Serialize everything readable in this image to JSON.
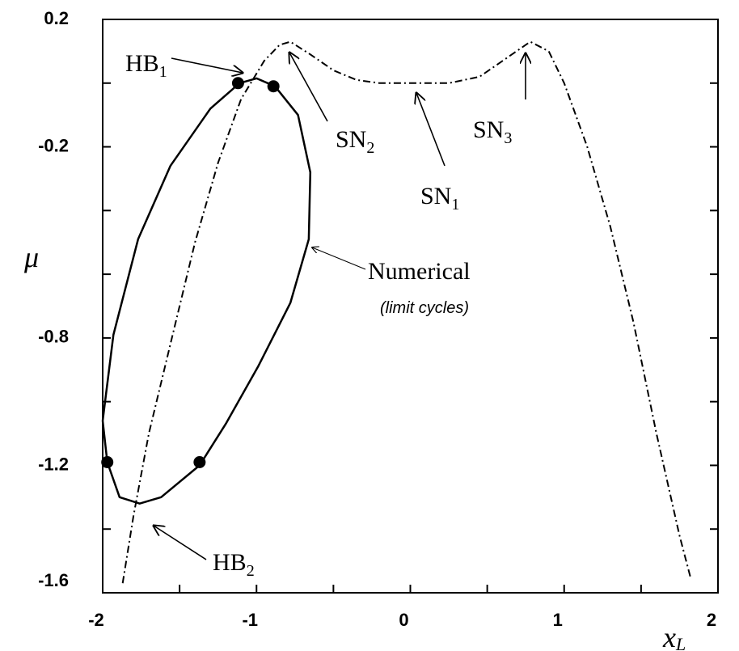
{
  "chart_data": {
    "type": "line",
    "xlabel": "x",
    "xlabel_sub": "L",
    "ylabel": "μ",
    "xlim": [
      -2,
      2
    ],
    "ylim": [
      -1.6,
      0.2
    ],
    "xticks": [
      -2,
      -1,
      0,
      1,
      2
    ],
    "yticks": [
      0.2,
      -0.2,
      -0.8,
      -1.2,
      -1.6
    ],
    "minor_xticks": [
      -1.5,
      -0.5,
      0.5,
      1.5
    ],
    "minor_yticks": [
      0,
      -0.4,
      -0.6,
      -1,
      -1.4
    ],
    "series": [
      {
        "style": "dashdot",
        "color": "#000000",
        "x": [
          -1.87,
          -1.8,
          -1.7,
          -1.55,
          -1.4,
          -1.25,
          -1.1,
          -0.95,
          -0.85,
          -0.78,
          -0.65,
          -0.5,
          -0.35,
          -0.2,
          0,
          0.25,
          0.45,
          0.6,
          0.72,
          0.78,
          0.9,
          1.0,
          1.15,
          1.3,
          1.45,
          1.6,
          1.75,
          1.82
        ],
        "values": [
          -1.57,
          -1.36,
          -1.1,
          -0.8,
          -0.5,
          -0.25,
          -0.05,
          0.07,
          0.12,
          0.13,
          0.09,
          0.04,
          0.01,
          0,
          0,
          0,
          0.02,
          0.07,
          0.11,
          0.13,
          0.1,
          0,
          -0.2,
          -0.45,
          -0.75,
          -1.1,
          -1.42,
          -1.55
        ]
      },
      {
        "style": "solid",
        "color": "#000000",
        "x": [
          -2,
          -1.93,
          -1.77,
          -1.56,
          -1.3,
          -1.11,
          -1.0,
          -0.88,
          -0.73,
          -0.65,
          -0.66,
          -0.78,
          -0.99,
          -1.2,
          -1.37,
          -1.62,
          -1.76,
          -1.89,
          -1.97,
          -2
        ],
        "values": [
          -1.06,
          -0.79,
          -0.49,
          -0.26,
          -0.08,
          0,
          0.015,
          -0.01,
          -0.1,
          -0.28,
          -0.49,
          -0.69,
          -0.89,
          -1.07,
          -1.2,
          -1.3,
          -1.32,
          -1.3,
          -1.19,
          -1.06
        ]
      },
      {
        "style": "dots",
        "color": "#000000",
        "x": [
          -1.12,
          -0.89,
          -1.97,
          -1.37
        ],
        "values": [
          0,
          -0.01,
          -1.19,
          -1.19
        ]
      }
    ],
    "annotations": [
      {
        "text": "HB",
        "sub": "1"
      },
      {
        "text": "SN",
        "sub": "2"
      },
      {
        "text": "SN",
        "sub": "1"
      },
      {
        "text": "SN",
        "sub": "3"
      },
      {
        "text": "Numerical",
        "note": "(limit cycles)"
      },
      {
        "text": "HB",
        "sub": "2"
      }
    ]
  }
}
